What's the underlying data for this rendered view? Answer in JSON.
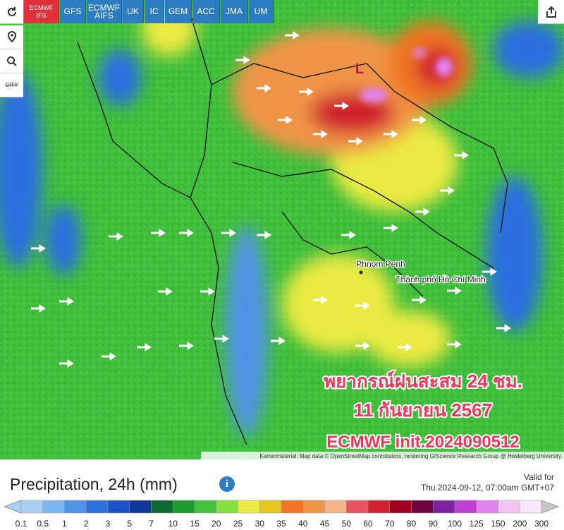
{
  "toolbar": {
    "models": [
      "ECMWF IFS",
      "GFS",
      "ECMWF AIFS",
      "UK",
      "IC",
      "GEM",
      "ACC",
      "JMA",
      "UM"
    ],
    "active_model": "ECMWF IFS",
    "city_button": "CITY"
  },
  "map": {
    "low_label": "L",
    "cities": [
      "Phnom Penh",
      "Thành phố Hồ Chí Minh"
    ],
    "overlay": [
      "พยากรณ์ฝนสะสม 24 ชม.",
      "11 กันยายน 2567",
      "ECMWF init.2024090512"
    ],
    "attribution": "Kartenmaterial: Map data © OpenStreetMap contributors, rendering GIScience Research Group @ Heidelberg University"
  },
  "legend": {
    "title": "Precipitation, 24h (mm)",
    "valid_label": "Valid for",
    "valid_time": "Thu 2024-09-12, 07:00am GMT+07",
    "labels": [
      "0.1",
      "0.5",
      "1",
      "2",
      "3",
      "5",
      "7",
      "10",
      "15",
      "20",
      "25",
      "30",
      "35",
      "40",
      "45",
      "50",
      "60",
      "70",
      "80",
      "90",
      "100",
      "125",
      "150",
      "200",
      "300"
    ],
    "colors": [
      "#a8d0f2",
      "#7cb6f0",
      "#4f92e6",
      "#2e70dc",
      "#1c52c4",
      "#0c3a96",
      "#0a6a32",
      "#1f9a32",
      "#44c23e",
      "#86e040",
      "#eaea42",
      "#e6c820",
      "#f07424",
      "#f09446",
      "#f2b488",
      "#e85462",
      "#d0222e",
      "#a00022",
      "#6e0442",
      "#7e22a0",
      "#c040d0",
      "#e282f0",
      "#f2c4f2",
      "#f8e8f8"
    ]
  }
}
